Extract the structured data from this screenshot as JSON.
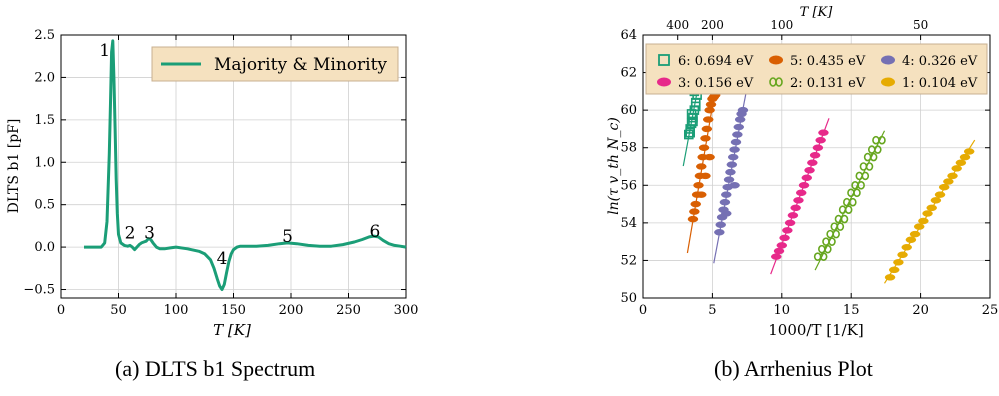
{
  "chart_data": [
    {
      "type": "line",
      "caption": "(a) DLTS b1 Spectrum",
      "xlabel": "T [K]",
      "ylabel": "DLTS b1 [pF]",
      "xlim": [
        0,
        300
      ],
      "ylim": [
        -0.6,
        2.5
      ],
      "xticks": [
        "0",
        "50",
        "100",
        "150",
        "200",
        "250",
        "300"
      ],
      "yticks": [
        "−0.5",
        "0.0",
        "0.5",
        "1.0",
        "1.5",
        "2.0",
        "2.5"
      ],
      "legend_position": "top-right",
      "grid": true,
      "series": [
        {
          "name": "Majority & Minority",
          "color": "#1b9e77",
          "x": [
            20,
            35,
            38,
            40,
            42,
            43,
            44,
            45,
            46,
            47,
            48,
            49,
            50,
            52,
            55,
            58,
            60,
            62,
            64,
            66,
            68,
            70,
            72,
            74,
            76,
            78,
            80,
            83,
            86,
            90,
            95,
            100,
            110,
            120,
            125,
            130,
            133,
            136,
            138,
            140,
            142,
            144,
            146,
            148,
            150,
            153,
            156,
            160,
            170,
            180,
            190,
            197,
            205,
            215,
            225,
            235,
            245,
            255,
            262,
            268,
            272,
            276,
            280,
            285,
            290,
            295,
            300
          ],
          "y": [
            0.0,
            0.0,
            0.05,
            0.3,
            1.1,
            1.7,
            2.3,
            2.43,
            2.0,
            1.4,
            0.8,
            0.4,
            0.15,
            0.05,
            0.02,
            0.01,
            0.02,
            0.0,
            -0.03,
            0.0,
            0.03,
            0.05,
            0.06,
            0.07,
            0.1,
            0.09,
            0.05,
            0.0,
            -0.02,
            -0.02,
            -0.01,
            0.0,
            -0.02,
            -0.05,
            -0.08,
            -0.15,
            -0.25,
            -0.38,
            -0.46,
            -0.5,
            -0.44,
            -0.3,
            -0.17,
            -0.08,
            -0.03,
            0.0,
            0.01,
            0.01,
            0.01,
            0.02,
            0.04,
            0.05,
            0.04,
            0.02,
            0.01,
            0.01,
            0.03,
            0.06,
            0.09,
            0.12,
            0.13,
            0.12,
            0.08,
            0.04,
            0.02,
            0.01,
            0.0
          ]
        }
      ],
      "annotations": [
        {
          "text": "1",
          "x": 38,
          "y": 2.25
        },
        {
          "text": "2",
          "x": 60,
          "y": 0.1
        },
        {
          "text": "3",
          "x": 77,
          "y": 0.1
        },
        {
          "text": "4",
          "x": 140,
          "y": -0.2
        },
        {
          "text": "5",
          "x": 197,
          "y": 0.06
        },
        {
          "text": "6",
          "x": 273,
          "y": 0.12
        }
      ]
    },
    {
      "type": "scatter",
      "caption": "(b) Arrhenius Plot",
      "xlabel": "1000/T [1/K]",
      "ylabel": "ln(τ v_th N_c)",
      "top_xlabel": "T [K]",
      "xlim": [
        0,
        25
      ],
      "ylim": [
        50,
        64
      ],
      "xticks": [
        "0",
        "5",
        "10",
        "15",
        "20",
        "25"
      ],
      "yticks": [
        "50",
        "52",
        "54",
        "56",
        "58",
        "60",
        "62",
        "64"
      ],
      "top_ticks": [
        {
          "label": "400",
          "x": 2.5
        },
        {
          "label": "200",
          "x": 5.0
        },
        {
          "label": "100",
          "x": 10.0
        },
        {
          "label": "50",
          "x": 20.0
        }
      ],
      "legend_position": "top",
      "grid": true,
      "series": [
        {
          "name": "6: 0.694 eV",
          "color": "#1b9e77",
          "marker": "square",
          "x": [
            3.3,
            3.4,
            3.5,
            3.6,
            3.7,
            3.8,
            3.9,
            4.0,
            3.4,
            3.6,
            3.8,
            3.5,
            3.7,
            3.9
          ],
          "y": [
            58.7,
            59.0,
            59.3,
            59.6,
            60.0,
            60.4,
            60.8,
            61.2,
            58.8,
            59.4,
            60.2,
            59.8,
            61.0,
            61.6
          ]
        },
        {
          "name": "5: 0.435 eV",
          "color": "#d95f02",
          "marker": "ellipse",
          "x": [
            3.6,
            3.7,
            3.8,
            3.9,
            4.0,
            4.1,
            4.2,
            4.3,
            4.4,
            4.5,
            4.6,
            4.7,
            4.8,
            4.9,
            5.0,
            5.1,
            5.2,
            4.2,
            4.5,
            4.8
          ],
          "y": [
            54.2,
            54.6,
            55.0,
            55.5,
            56.0,
            56.5,
            57.0,
            57.5,
            58.0,
            58.5,
            59.0,
            59.5,
            60.0,
            60.3,
            60.6,
            60.7,
            60.8,
            55.5,
            56.5,
            57.5
          ]
        },
        {
          "name": "4: 0.326 eV",
          "color": "#7570b3",
          "marker": "ellipse",
          "x": [
            5.5,
            5.6,
            5.7,
            5.8,
            5.9,
            6.0,
            6.1,
            6.2,
            6.3,
            6.4,
            6.5,
            6.6,
            6.7,
            6.8,
            6.9,
            7.0,
            7.1,
            7.2,
            6.0,
            6.6
          ],
          "y": [
            53.5,
            53.9,
            54.3,
            54.7,
            55.1,
            55.5,
            55.9,
            56.3,
            56.7,
            57.1,
            57.5,
            57.9,
            58.3,
            58.7,
            59.1,
            59.5,
            59.8,
            60.0,
            54.5,
            56.0
          ]
        },
        {
          "name": "3: 0.156 eV",
          "color": "#e7298a",
          "marker": "ellipse",
          "x": [
            9.6,
            9.8,
            10.0,
            10.2,
            10.4,
            10.6,
            10.8,
            11.0,
            11.2,
            11.4,
            11.6,
            11.8,
            12.0,
            12.2,
            12.4,
            12.6,
            12.8,
            13.0
          ],
          "y": [
            52.2,
            52.5,
            52.8,
            53.2,
            53.6,
            54.0,
            54.4,
            54.8,
            55.2,
            55.6,
            56.0,
            56.4,
            56.8,
            57.2,
            57.6,
            58.0,
            58.4,
            58.8
          ]
        },
        {
          "name": "2: 0.131 eV",
          "color": "#66a61e",
          "marker": "infinity",
          "x": [
            12.8,
            13.1,
            13.4,
            13.7,
            14.0,
            14.3,
            14.6,
            14.9,
            15.2,
            15.5,
            15.8,
            16.1,
            16.4,
            16.7,
            17.0
          ],
          "y": [
            52.2,
            52.6,
            53.0,
            53.4,
            53.8,
            54.2,
            54.7,
            55.1,
            55.6,
            56.0,
            56.5,
            57.0,
            57.5,
            57.9,
            58.4
          ]
        },
        {
          "name": "1: 0.104 eV",
          "color": "#e6ab02",
          "marker": "ellipse",
          "x": [
            17.8,
            18.1,
            18.4,
            18.7,
            19.0,
            19.3,
            19.6,
            19.9,
            20.2,
            20.5,
            20.8,
            21.1,
            21.4,
            21.7,
            22.0,
            22.3,
            22.6,
            22.9,
            23.2,
            23.5
          ],
          "y": [
            51.1,
            51.5,
            51.9,
            52.3,
            52.7,
            53.1,
            53.4,
            53.8,
            54.1,
            54.5,
            54.8,
            55.2,
            55.5,
            55.9,
            56.2,
            56.5,
            56.9,
            57.2,
            57.5,
            57.8
          ]
        }
      ]
    }
  ]
}
